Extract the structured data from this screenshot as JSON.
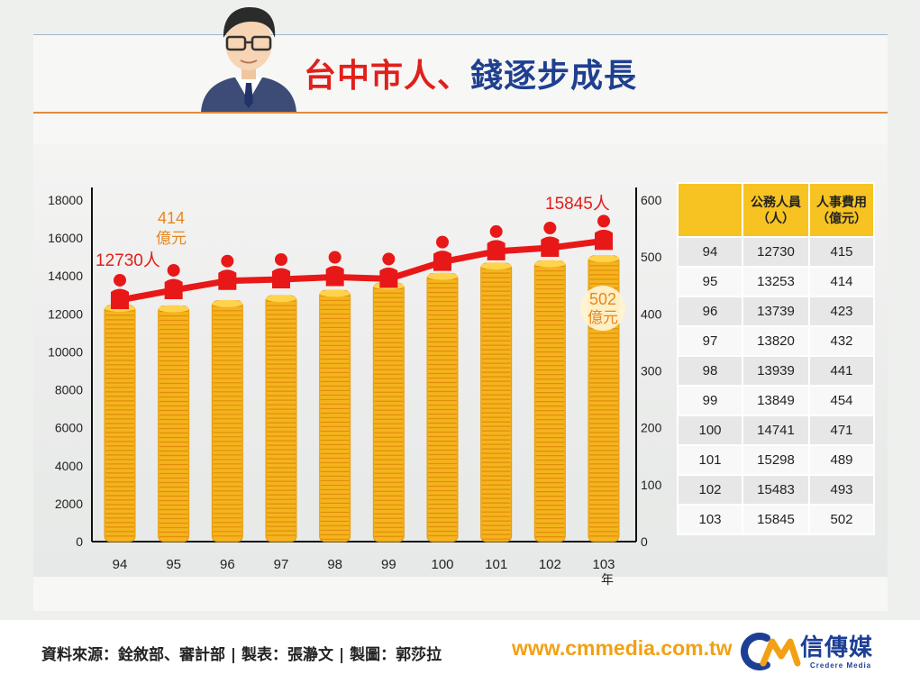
{
  "title": {
    "part1": "台中市人、",
    "part2": "錢逐步成長"
  },
  "chart_data": {
    "type": "bar",
    "categories": [
      "94",
      "95",
      "96",
      "97",
      "98",
      "99",
      "100",
      "101",
      "102",
      "103"
    ],
    "x_unit": "年",
    "series": [
      {
        "name": "公務人員（人）",
        "kind": "line",
        "axis": "left",
        "color": "#e81818",
        "values": [
          12730,
          13253,
          13739,
          13820,
          13939,
          13849,
          14741,
          15298,
          15483,
          15845
        ]
      },
      {
        "name": "人事費用（億元）",
        "kind": "bar",
        "axis": "right",
        "color": "#f5b31d",
        "values": [
          415,
          414,
          423,
          432,
          441,
          454,
          471,
          489,
          493,
          502
        ]
      }
    ],
    "y_left": {
      "min": 0,
      "max": 18000,
      "ticks": [
        "0",
        "2000",
        "4000",
        "6000",
        "8000",
        "10000",
        "12000",
        "14000",
        "16000",
        "18000"
      ]
    },
    "y_right": {
      "min": 0,
      "max": 600,
      "ticks": [
        "0",
        "100",
        "200",
        "300",
        "400",
        "500",
        "600"
      ]
    },
    "annotations": {
      "start_people": "12730人",
      "end_people": "15845人",
      "money_95": [
        "414",
        "億元"
      ],
      "money_103": [
        "502",
        "億元"
      ]
    }
  },
  "table": {
    "headers": [
      "",
      "公務人員\n（人）",
      "人事費用\n（億元）"
    ],
    "rows": [
      [
        "94",
        "12730",
        "415"
      ],
      [
        "95",
        "13253",
        "414"
      ],
      [
        "96",
        "13739",
        "423"
      ],
      [
        "97",
        "13820",
        "432"
      ],
      [
        "98",
        "13939",
        "441"
      ],
      [
        "99",
        "13849",
        "454"
      ],
      [
        "100",
        "14741",
        "471"
      ],
      [
        "101",
        "15298",
        "489"
      ],
      [
        "102",
        "15483",
        "493"
      ],
      [
        "103",
        "15845",
        "502"
      ]
    ]
  },
  "footer": {
    "source": "資料來源：銓敘部、審計部 | 製表：張瀞文 | 製圖：郭莎拉",
    "url": "www.cmmedia.com.tw",
    "logo_cn": "信傳媒",
    "logo_en": "Credere Media"
  },
  "colors": {
    "accent_red": "#e0201b",
    "accent_blue": "#1f3f8f",
    "gold": "#f5b31d",
    "table_header": "#f7c322",
    "orange": "#e8861e"
  }
}
